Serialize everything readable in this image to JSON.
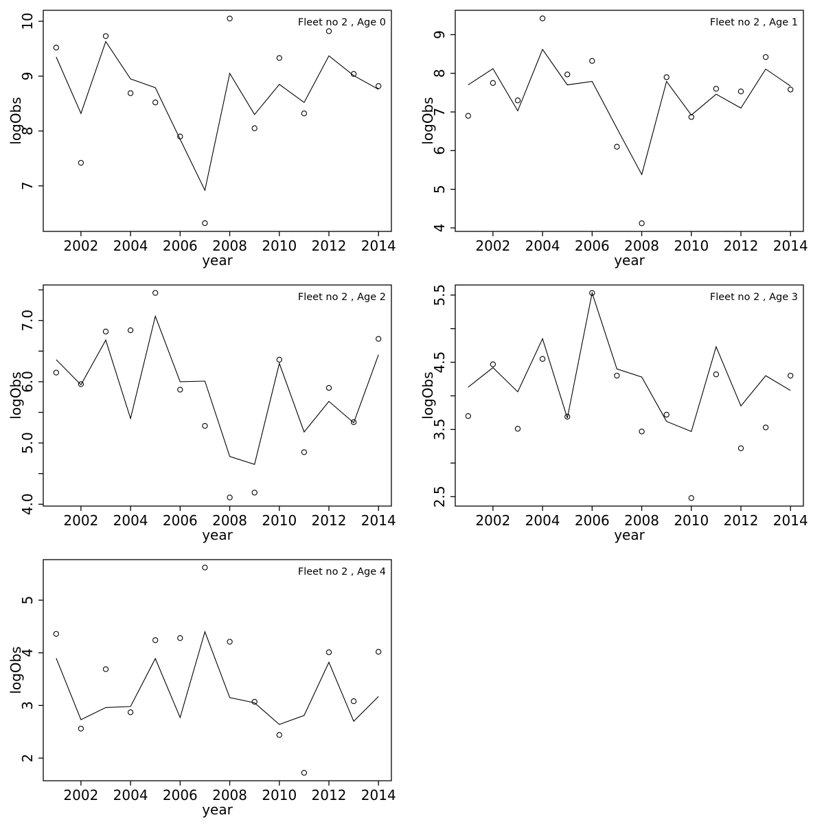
{
  "page": {
    "background": "#ffffff",
    "foreground": "#000000",
    "marker": "open-circle"
  },
  "chart_data": [
    {
      "type": "line",
      "title": "Fleet no 2 , Age 0",
      "xlabel": "year",
      "ylabel": "logObs",
      "grid": false,
      "legend": "none",
      "x": [
        2001,
        2002,
        2003,
        2004,
        2005,
        2006,
        2007,
        2008,
        2009,
        2010,
        2011,
        2012,
        2013,
        2014
      ],
      "series": [
        {
          "name": "observed logObs",
          "style": "points",
          "marker": "open-circle",
          "color": "#000000",
          "values": [
            9.52,
            7.42,
            9.73,
            8.69,
            8.52,
            7.9,
            6.32,
            10.05,
            8.05,
            9.33,
            8.32,
            9.82,
            9.04,
            8.82
          ]
        },
        {
          "name": "model fit",
          "style": "line",
          "color": "#000000",
          "values": [
            9.35,
            8.32,
            9.63,
            8.95,
            8.79,
            7.85,
            6.92,
            9.05,
            8.3,
            8.85,
            8.52,
            9.37,
            9.01,
            8.76
          ]
        }
      ],
      "xlim": [
        2000.48,
        2014.52
      ],
      "ylim": [
        6.17,
        10.2
      ],
      "xticks": [
        2002,
        2004,
        2006,
        2008,
        2010,
        2012,
        2014
      ],
      "yticks": [
        7,
        8,
        9,
        10
      ],
      "ytick_labels": [
        "7",
        "8",
        "9",
        "10"
      ]
    },
    {
      "type": "line",
      "title": "Fleet no 2 , Age 1",
      "xlabel": "year",
      "ylabel": "logObs",
      "grid": false,
      "legend": "none",
      "x": [
        2001,
        2002,
        2003,
        2004,
        2005,
        2006,
        2007,
        2008,
        2009,
        2010,
        2011,
        2012,
        2013,
        2014
      ],
      "series": [
        {
          "name": "observed logObs",
          "style": "points",
          "marker": "open-circle",
          "color": "#000000",
          "values": [
            6.9,
            7.75,
            7.3,
            9.42,
            7.97,
            8.32,
            6.1,
            4.12,
            7.9,
            6.87,
            7.6,
            7.53,
            8.42,
            7.58
          ]
        },
        {
          "name": "model fit",
          "style": "line",
          "color": "#000000",
          "values": [
            7.7,
            8.12,
            7.03,
            8.62,
            7.7,
            7.79,
            6.58,
            5.38,
            7.79,
            6.92,
            7.46,
            7.1,
            8.11,
            7.67
          ]
        }
      ],
      "xlim": [
        2000.48,
        2014.52
      ],
      "ylim": [
        3.91,
        9.63
      ],
      "xticks": [
        2002,
        2004,
        2006,
        2008,
        2010,
        2012,
        2014
      ],
      "yticks": [
        4,
        5,
        6,
        7,
        8,
        9
      ],
      "ytick_labels": [
        "4",
        "5",
        "6",
        "7",
        "8",
        "9"
      ]
    },
    {
      "type": "line",
      "title": "Fleet no 2 , Age 2",
      "xlabel": "year",
      "ylabel": "logObs",
      "grid": false,
      "legend": "none",
      "x": [
        2001,
        2002,
        2003,
        2004,
        2005,
        2006,
        2007,
        2008,
        2009,
        2010,
        2011,
        2012,
        2013,
        2014
      ],
      "series": [
        {
          "name": "observed logObs",
          "style": "points",
          "marker": "open-circle",
          "color": "#000000",
          "values": [
            6.15,
            5.96,
            6.82,
            6.84,
            7.45,
            5.87,
            5.28,
            4.11,
            4.19,
            6.36,
            4.85,
            5.9,
            5.34,
            6.7
          ]
        },
        {
          "name": "model fit",
          "style": "line",
          "color": "#000000",
          "values": [
            6.36,
            5.95,
            6.68,
            5.4,
            7.07,
            6.0,
            6.01,
            4.78,
            4.65,
            6.3,
            5.18,
            5.68,
            5.33,
            6.44
          ]
        }
      ],
      "xlim": [
        2000.48,
        2014.52
      ],
      "ylim": [
        3.97,
        7.58
      ],
      "xticks": [
        2002,
        2004,
        2006,
        2008,
        2010,
        2012,
        2014
      ],
      "yticks": [
        4.0,
        4.5,
        5.0,
        5.5,
        6.0,
        6.5,
        7.0,
        7.5
      ],
      "ytick_labels": [
        "4.0",
        "",
        "5.0",
        "",
        "6.0",
        "",
        "7.0",
        ""
      ]
    },
    {
      "type": "line",
      "title": "Fleet no 2 , Age 3",
      "xlabel": "year",
      "ylabel": "logObs",
      "grid": false,
      "legend": "none",
      "x": [
        2001,
        2002,
        2003,
        2004,
        2005,
        2006,
        2007,
        2008,
        2009,
        2010,
        2011,
        2012,
        2013,
        2014
      ],
      "series": [
        {
          "name": "observed logObs",
          "style": "points",
          "marker": "open-circle",
          "color": "#000000",
          "values": [
            3.7,
            4.47,
            3.51,
            4.55,
            3.69,
            5.53,
            4.3,
            3.47,
            3.72,
            2.48,
            4.32,
            3.22,
            3.53,
            4.3
          ]
        },
        {
          "name": "model fit",
          "style": "line",
          "color": "#000000",
          "values": [
            4.13,
            4.42,
            4.06,
            4.85,
            3.67,
            5.53,
            4.4,
            4.28,
            3.62,
            3.47,
            4.73,
            3.85,
            4.3,
            4.08
          ]
        }
      ],
      "xlim": [
        2000.48,
        2014.52
      ],
      "ylim": [
        2.36,
        5.65
      ],
      "xticks": [
        2002,
        2004,
        2006,
        2008,
        2010,
        2012,
        2014
      ],
      "yticks": [
        2.5,
        3.0,
        3.5,
        4.0,
        4.5,
        5.0,
        5.5
      ],
      "ytick_labels": [
        "2.5",
        "",
        "3.5",
        "",
        "4.5",
        "",
        "5.5"
      ]
    },
    {
      "type": "line",
      "title": "Fleet no 2 , Age 4",
      "xlabel": "year",
      "ylabel": "logObs",
      "grid": false,
      "legend": "none",
      "x": [
        2001,
        2002,
        2003,
        2004,
        2005,
        2006,
        2007,
        2008,
        2009,
        2010,
        2011,
        2012,
        2013,
        2014
      ],
      "series": [
        {
          "name": "observed logObs",
          "style": "points",
          "marker": "open-circle",
          "color": "#000000",
          "values": [
            4.36,
            2.56,
            3.69,
            2.87,
            4.24,
            4.28,
            5.62,
            4.21,
            3.07,
            2.44,
            1.72,
            4.01,
            3.08,
            4.02
          ]
        },
        {
          "name": "model fit",
          "style": "line",
          "color": "#000000",
          "values": [
            3.9,
            2.73,
            2.96,
            2.98,
            3.89,
            2.77,
            4.4,
            3.15,
            3.05,
            2.64,
            2.81,
            3.82,
            2.7,
            3.17
          ]
        }
      ],
      "xlim": [
        2000.48,
        2014.52
      ],
      "ylim": [
        1.57,
        5.77
      ],
      "xticks": [
        2002,
        2004,
        2006,
        2008,
        2010,
        2012,
        2014
      ],
      "yticks": [
        2,
        3,
        4,
        5
      ],
      "ytick_labels": [
        "2",
        "3",
        "4",
        "5"
      ]
    }
  ]
}
